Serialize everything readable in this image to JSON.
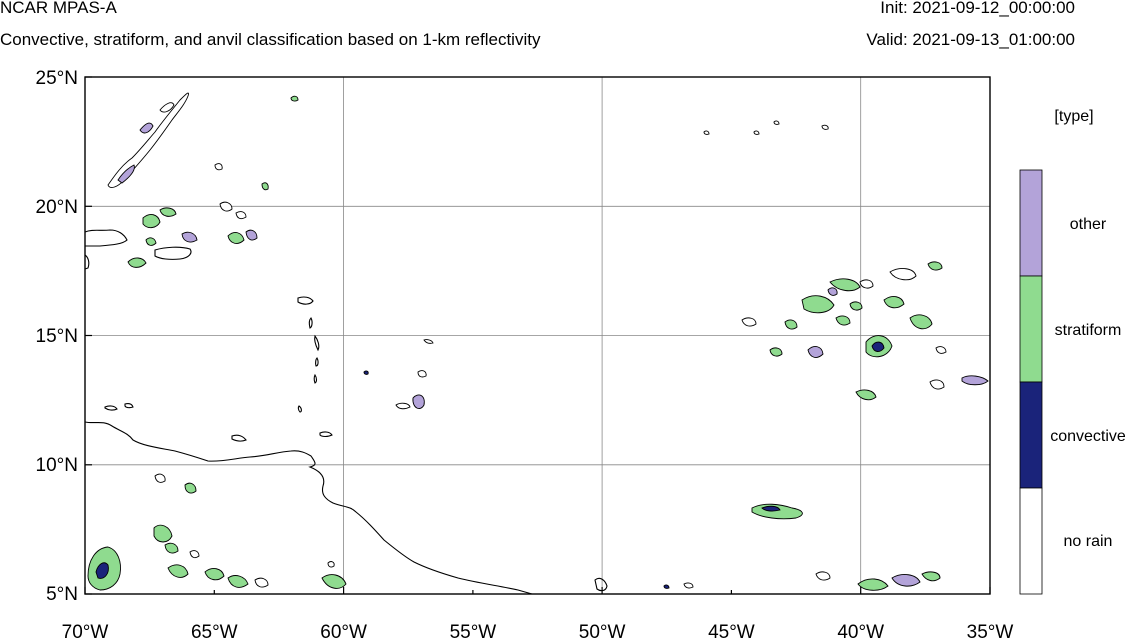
{
  "header": {
    "title": "NCAR MPAS-A",
    "subtitle": "Convective, stratiform, and anvil classification based on 1-km reflectivity",
    "init": "Init: 2021-09-12_00:00:00",
    "valid": "Valid: 2021-09-13_01:00:00"
  },
  "map": {
    "lon_range": [
      -70,
      -35
    ],
    "lat_range": [
      5,
      25
    ],
    "lon_ticks": [
      "70°W",
      "65°W",
      "60°W",
      "55°W",
      "50°W",
      "45°W",
      "40°W",
      "35°W"
    ],
    "lat_ticks": [
      "25°N",
      "20°N",
      "15°N",
      "10°N",
      "5°N"
    ],
    "grid": true
  },
  "legend": {
    "title": "[type]",
    "items": [
      {
        "label": "other",
        "color": "#b3a3d9"
      },
      {
        "label": "stratiform",
        "color": "#8fdb8f"
      },
      {
        "label": "convective",
        "color": "#1a237a"
      },
      {
        "label": "no rain",
        "color": "#ffffff"
      }
    ]
  }
}
